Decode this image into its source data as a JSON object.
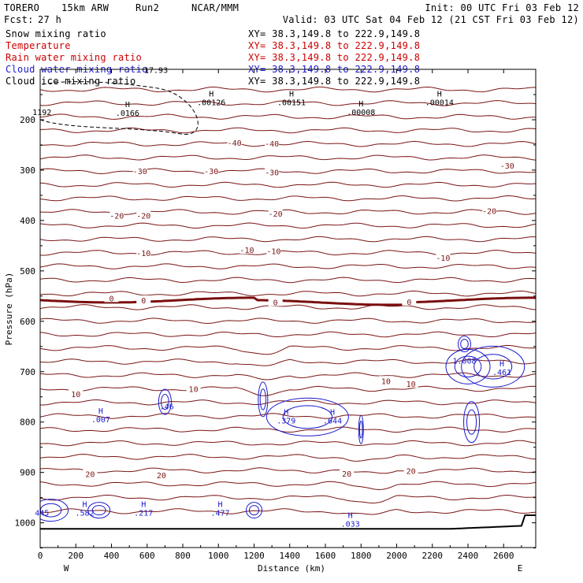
{
  "header": {
    "model": "TORERO",
    "resolution": "15km ARW",
    "run": "Run2",
    "org": "NCAR/MMM",
    "init": "Init: 00 UTC Fri 03 Feb 12",
    "fcst_label": "Fcst:",
    "fcst_value": "27 h",
    "valid": "Valid: 03 UTC Sat 04 Feb 12 (21 CST Fri 03 Feb 12)"
  },
  "legend": [
    {
      "name": "Snow mixing ratio",
      "color": "#000000",
      "xy": "XY=  38.3,149.8 to 222.9,149.8",
      "xy_color": "#000000"
    },
    {
      "name": "Temperature",
      "color": "#cc0000",
      "xy": "XY=  38.3,149.8 to 222.9,149.8",
      "xy_color": "#cc0000"
    },
    {
      "name": "Rain water mixing ratio",
      "color": "#cc0000",
      "xy": "XY=  38.3,149.8 to 222.9,149.8",
      "xy_color": "#cc0000"
    },
    {
      "name": "Cloud water mixing ratio",
      "color": "#1a1acc",
      "xy": "XY=  38.3,149.8 to 222.9,149.8",
      "xy_color": "#1a1acc"
    },
    {
      "name": "Cloud ice mixing ratio",
      "color": "#000000",
      "xy": "XY=  38.3,149.8 to 222.9,149.8",
      "xy_color": "#000000"
    }
  ],
  "chart_data": {
    "type": "contour",
    "xlabel": "Distance (km)",
    "ylabel": "Pressure (hPa)",
    "xlim": [
      0,
      2780
    ],
    "ylim": [
      1050,
      100
    ],
    "x_ticks": [
      0,
      200,
      400,
      600,
      800,
      1000,
      1200,
      1400,
      1600,
      1800,
      2000,
      2200,
      2400,
      2600
    ],
    "y_ticks": [
      200,
      300,
      400,
      500,
      600,
      700,
      800,
      900,
      1000
    ],
    "x_end_labels": {
      "left": "W",
      "right": "E"
    },
    "temperature_labels": [
      {
        "x": 1090,
        "p": 245,
        "text": "-40"
      },
      {
        "x": 1300,
        "p": 247,
        "text": "-40"
      },
      {
        "x": 560,
        "p": 302,
        "text": "-30"
      },
      {
        "x": 960,
        "p": 302,
        "text": "-30"
      },
      {
        "x": 1300,
        "p": 304,
        "text": "-30"
      },
      {
        "x": 2620,
        "p": 291,
        "text": "-30"
      },
      {
        "x": 430,
        "p": 390,
        "text": "-20"
      },
      {
        "x": 580,
        "p": 390,
        "text": "-20"
      },
      {
        "x": 1320,
        "p": 386,
        "text": "-20"
      },
      {
        "x": 2520,
        "p": 381,
        "text": "-20"
      },
      {
        "x": 580,
        "p": 464,
        "text": "-10"
      },
      {
        "x": 1160,
        "p": 458,
        "text": "-10"
      },
      {
        "x": 1310,
        "p": 460,
        "text": "-10"
      },
      {
        "x": 2260,
        "p": 474,
        "text": "-10"
      },
      {
        "x": 400,
        "p": 554,
        "text": "0"
      },
      {
        "x": 580,
        "p": 558,
        "text": "0"
      },
      {
        "x": 1320,
        "p": 562,
        "text": "0"
      },
      {
        "x": 2070,
        "p": 561,
        "text": "0"
      },
      {
        "x": 200,
        "p": 744,
        "text": "10"
      },
      {
        "x": 860,
        "p": 734,
        "text": "10"
      },
      {
        "x": 1940,
        "p": 718,
        "text": "10"
      },
      {
        "x": 2080,
        "p": 724,
        "text": "10"
      },
      {
        "x": 280,
        "p": 903,
        "text": "20"
      },
      {
        "x": 680,
        "p": 905,
        "text": "20"
      },
      {
        "x": 1720,
        "p": 902,
        "text": "20"
      },
      {
        "x": 2080,
        "p": 897,
        "text": "20"
      }
    ],
    "maxima_labels": [
      {
        "x": 960,
        "p": 163,
        "h": "H",
        "value": ".00126"
      },
      {
        "x": 1410,
        "p": 163,
        "h": "H",
        "value": ".00151"
      },
      {
        "x": 1800,
        "p": 183,
        "h": "H",
        "value": ".00008"
      },
      {
        "x": 2240,
        "p": 163,
        "h": "H",
        "value": ".00014"
      },
      {
        "x": 490,
        "p": 184,
        "h": "H",
        "value": ".0166"
      },
      {
        "x": 10,
        "p": 183,
        "h": "",
        "value": "1192"
      },
      {
        "x": 650,
        "p": 99,
        "h": "",
        "value": "17.93"
      },
      {
        "x": 2380,
        "p": 676,
        "h": "",
        "value": "1.008"
      },
      {
        "x": 2590,
        "p": 699,
        "h": "H",
        "value": ".461"
      },
      {
        "x": 710,
        "p": 767,
        "h": "",
        "value": ".46"
      },
      {
        "x": 340,
        "p": 793,
        "h": "H",
        "value": ".007"
      },
      {
        "x": 1380,
        "p": 795,
        "h": "H",
        "value": ".379"
      },
      {
        "x": 1640,
        "p": 795,
        "h": "H",
        "value": ".644"
      },
      {
        "x": 10,
        "p": 978,
        "h": "",
        "value": "445"
      },
      {
        "x": 250,
        "p": 978,
        "h": "H",
        "value": ".582"
      },
      {
        "x": 580,
        "p": 978,
        "h": "H",
        "value": ".217"
      },
      {
        "x": 1010,
        "p": 978,
        "h": "H",
        "value": ".477"
      },
      {
        "x": 1740,
        "p": 1000,
        "h": "H",
        "value": ".033"
      }
    ]
  },
  "colors": {
    "temperature": "#7a1515",
    "freezing": "#7a0e0e",
    "cloud_water": "#1a1acc",
    "snow": "#000000",
    "axis": "#000000"
  }
}
